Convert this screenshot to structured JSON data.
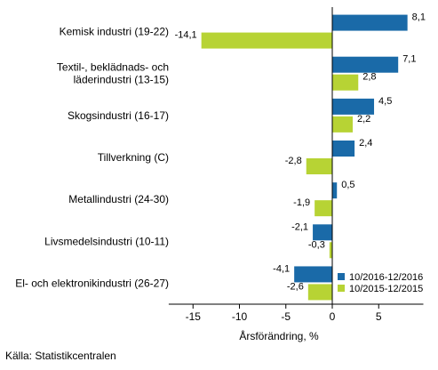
{
  "chart_data": {
    "type": "bar",
    "orientation": "horizontal",
    "categories": [
      [
        "Kemisk industri (19-22)"
      ],
      [
        "Textil-, beklädnads- och",
        "läderindustri (13-15)"
      ],
      [
        "Skogsindustri (16-17)"
      ],
      [
        "Tillverkning (C)"
      ],
      [
        "Metallindustri (24-30)"
      ],
      [
        "Livsmedelsindustri (10-11)"
      ],
      [
        "El- och elektronikindustri (26-27)"
      ]
    ],
    "series": [
      {
        "name": "10/2016-12/2016",
        "color": "#1a6aa8",
        "values": [
          8.1,
          7.1,
          4.5,
          2.4,
          0.5,
          -2.1,
          -4.1
        ],
        "labels": [
          "8,1",
          "7,1",
          "4,5",
          "2,4",
          "0,5",
          "-2,1",
          "-4,1"
        ]
      },
      {
        "name": "10/2015-12/2015",
        "color": "#b7d334",
        "values": [
          -14.1,
          2.8,
          2.2,
          -2.8,
          -1.9,
          -0.3,
          -2.6
        ],
        "labels": [
          "-14,1",
          "2,8",
          "2,2",
          "-2,8",
          "-1,9",
          "-0,3",
          "-2,6"
        ]
      }
    ],
    "xlim": [
      -18,
      10
    ],
    "xticks": [
      -15,
      -10,
      -5,
      0,
      5
    ],
    "xtick_labels": [
      "-15",
      "-10",
      "-5",
      "0",
      "5"
    ],
    "xlabel": "Årsförändring, %",
    "legend": "bottom-right",
    "grid": false
  },
  "footer": {
    "source": "Källa: Statistikcentralen"
  }
}
